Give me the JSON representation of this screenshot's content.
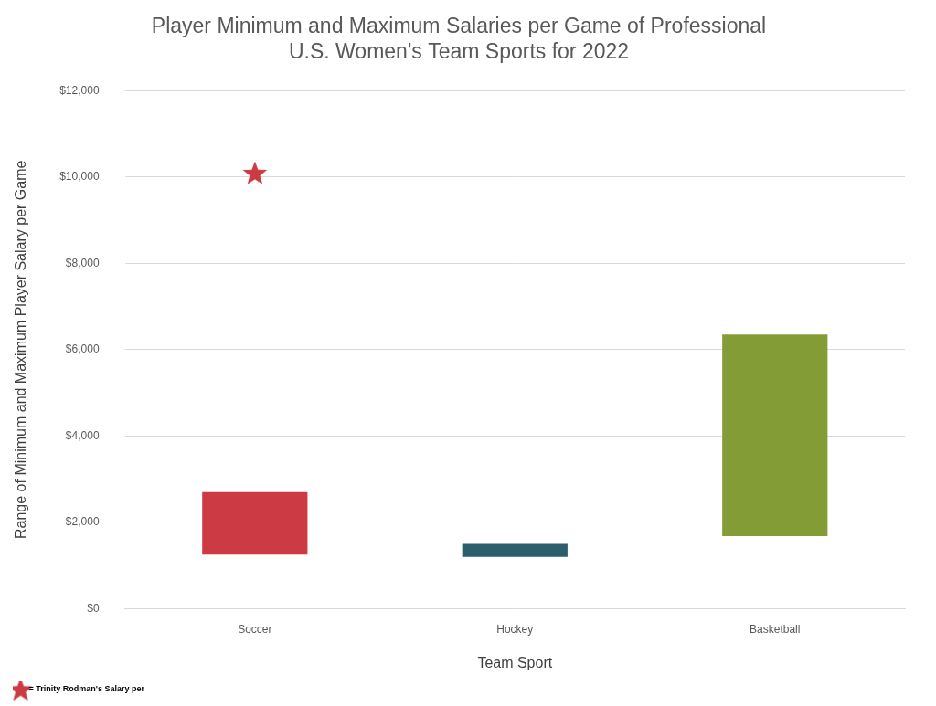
{
  "chart_data": {
    "type": "bar",
    "title": [
      "Player Minimum and Maximum Salaries per Game of Professional",
      "U.S. Women's Team Sports for 2022"
    ],
    "x_label": "Team Sport",
    "y_label": "Range of Minimum and Maximum Player Salary per Game",
    "categories": [
      "Soccer",
      "Hockey",
      "Basketball"
    ],
    "series": [
      {
        "type": "bar",
        "values": [
          [
            1250,
            2700
          ],
          [
            1200,
            1500
          ],
          [
            1680,
            6350
          ]
        ],
        "colors": [
          "#cc3a43",
          "#2a5f6b",
          "#849c35"
        ]
      },
      {
        "name": "= Trinity Rodman's Salary per",
        "type": "scatter",
        "marker": "star",
        "color": "#cc3a43",
        "values": [
          10100,
          null,
          null
        ]
      }
    ],
    "ylim": [
      0,
      12000
    ],
    "yticks": [
      {
        "value": 0,
        "label": "$0"
      },
      {
        "value": 2000,
        "label": "$2,000"
      },
      {
        "value": 4000,
        "label": "$4,000"
      },
      {
        "value": 6000,
        "label": "$6,000"
      },
      {
        "value": 8000,
        "label": "$8,000"
      },
      {
        "value": 10000,
        "label": "$10,000"
      },
      {
        "value": 12000,
        "label": "$12,000"
      }
    ],
    "grid": true,
    "legend": "bottom-left"
  }
}
